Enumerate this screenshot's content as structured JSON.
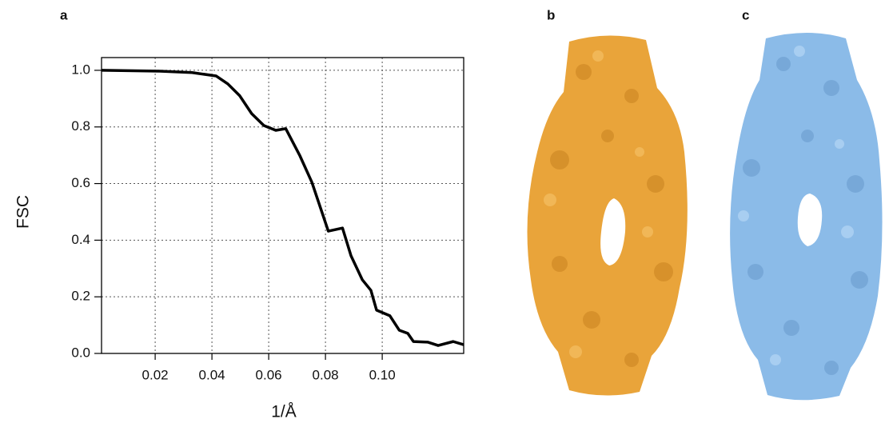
{
  "panel_labels": [
    "a",
    "b",
    "c"
  ],
  "chart_data": {
    "type": "line",
    "x_label": "1/Å",
    "y_label": "FSC",
    "x": [
      0.0011,
      0.0217,
      0.033,
      0.0415,
      0.0456,
      0.0498,
      0.054,
      0.0583,
      0.0625,
      0.066,
      0.071,
      0.0752,
      0.081,
      0.086,
      0.089,
      0.093,
      0.096,
      0.098,
      0.1027,
      0.106,
      0.109,
      0.111,
      0.116,
      0.1197,
      0.125,
      0.1287
    ],
    "series": [
      {
        "color": "#000000",
        "values": [
          1.0,
          0.997,
          0.992,
          0.98,
          0.952,
          0.91,
          0.847,
          0.805,
          0.788,
          0.794,
          0.698,
          0.605,
          0.432,
          0.443,
          0.345,
          0.26,
          0.223,
          0.153,
          0.133,
          0.082,
          0.071,
          0.042,
          0.04,
          0.028,
          0.042,
          0.031
        ]
      }
    ],
    "xlim": [
      0.0011,
      0.1287
    ],
    "ylim": [
      0,
      1.045
    ],
    "xticks": [
      0.02,
      0.04,
      0.06,
      0.08,
      {
        "value": 0.1,
        "label": "0.10"
      }
    ],
    "yticks": [
      {
        "value": 0,
        "label": "0.0"
      },
      0.2,
      0.4,
      0.6,
      0.8,
      {
        "value": 1,
        "label": "1.0"
      }
    ],
    "grid": true
  }
}
